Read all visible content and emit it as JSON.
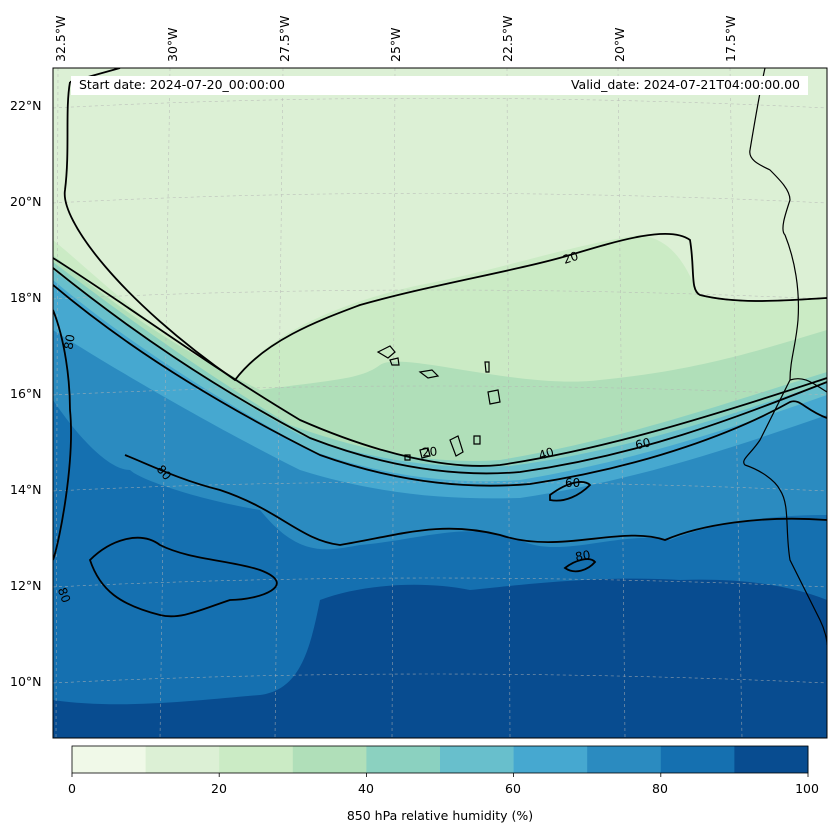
{
  "header": {
    "start_date": "Start date: 2024-07-20_00:00:00",
    "valid_date": "Valid_date: 2024-07-21T04:00:00.00"
  },
  "axes": {
    "longitude_labels": [
      "32.5°W",
      "30°W",
      "27.5°W",
      "25°W",
      "22.5°W",
      "20°W",
      "17.5°W"
    ],
    "latitude_labels": [
      "22°N",
      "20°N",
      "18°N",
      "16°N",
      "14°N",
      "12°N",
      "10°N"
    ]
  },
  "contour_labels": [
    "20",
    "20",
    "40",
    "60",
    "60",
    "80",
    "80",
    "80",
    "80"
  ],
  "colorbar": {
    "title": "850 hPa relative humidity (%)",
    "ticks": [
      "0",
      "20",
      "40",
      "60",
      "80",
      "100"
    ],
    "levels": [
      0,
      10,
      20,
      30,
      40,
      50,
      60,
      70,
      80,
      90,
      100
    ],
    "colors": [
      "#f0f9e8",
      "#dcf0d5",
      "#cbebc5",
      "#b0dfb9",
      "#8bd1c0",
      "#68bfcc",
      "#46a8d0",
      "#2b8bc0",
      "#1570b0",
      "#084c90"
    ]
  },
  "colors": {
    "land_outline": "#000000",
    "contour_line": "#000000",
    "grid_line": "#b4b4b4"
  }
}
